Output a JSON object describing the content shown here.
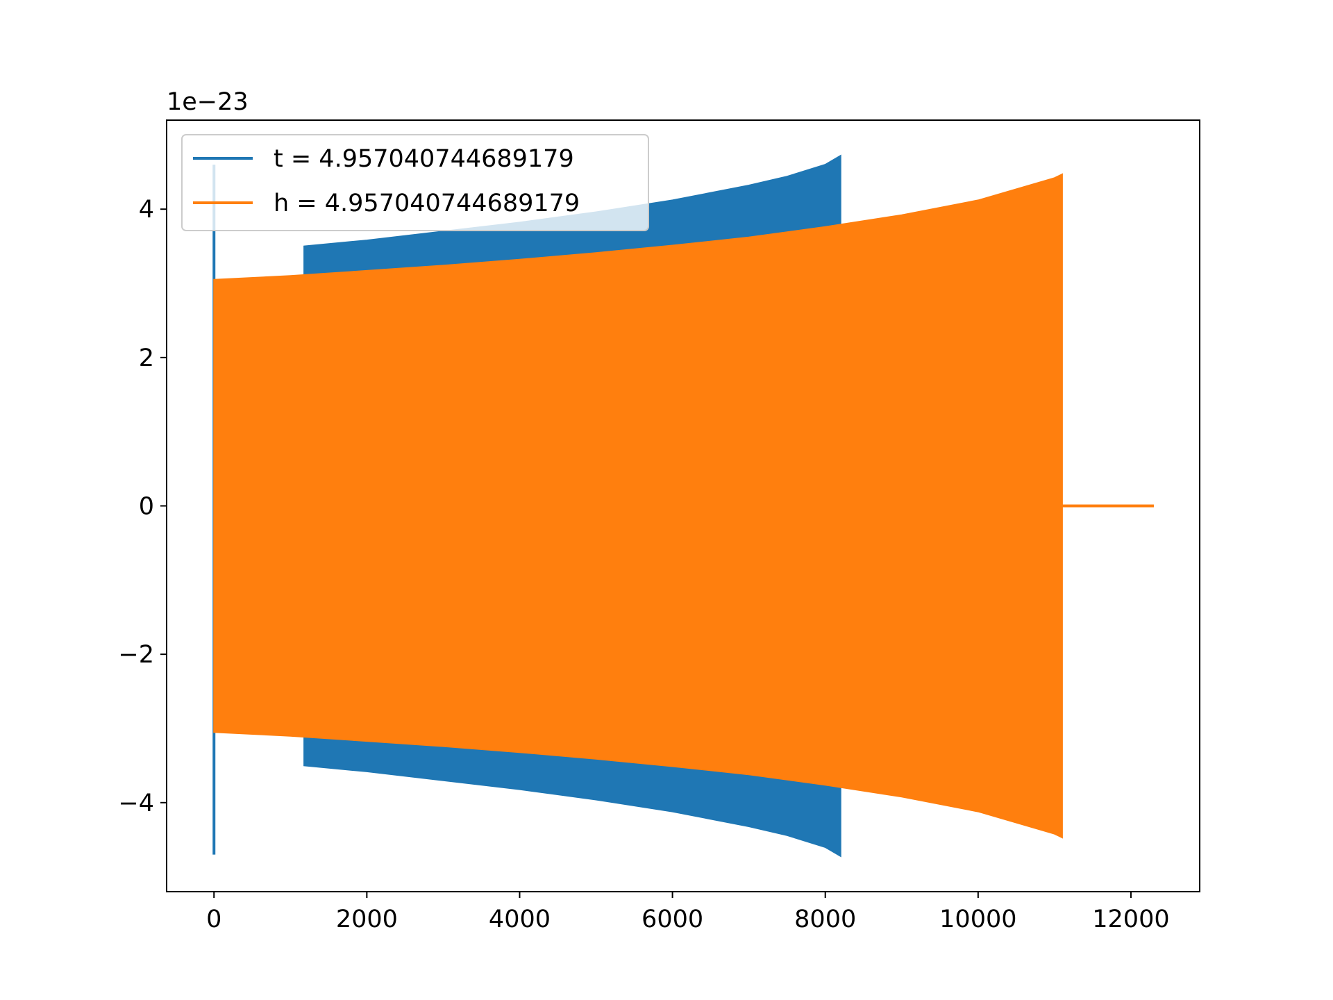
{
  "chart_data": {
    "type": "line",
    "title": "",
    "xlabel": "",
    "ylabel": "",
    "y_offset_text": "1e−23",
    "xlim": [
      -620,
      12900
    ],
    "ylim": [
      -5.2,
      5.2
    ],
    "x_ticks": [
      {
        "value": 0,
        "label": "0"
      },
      {
        "value": 2000,
        "label": "2000"
      },
      {
        "value": 4000,
        "label": "4000"
      },
      {
        "value": 6000,
        "label": "6000"
      },
      {
        "value": 8000,
        "label": "8000"
      },
      {
        "value": 10000,
        "label": "10000"
      },
      {
        "value": 12000,
        "label": "12000"
      }
    ],
    "y_ticks": [
      {
        "value": -4,
        "label": "−4"
      },
      {
        "value": -2,
        "label": "−2"
      },
      {
        "value": 0,
        "label": "0"
      },
      {
        "value": 2,
        "label": "2"
      },
      {
        "value": 4,
        "label": "4"
      }
    ],
    "grid": false,
    "legend_position": "top-left",
    "series": [
      {
        "name": "t = 4.957040744689179",
        "color": "#1f77b4",
        "spike": {
          "x": 0,
          "ymin": -4.7,
          "ymax": 4.6
        },
        "envelope": {
          "x": [
            1180,
            2000,
            3000,
            4000,
            5000,
            6000,
            7000,
            7500,
            8000,
            8200
          ],
          "upper": [
            3.5,
            3.58,
            3.7,
            3.82,
            3.96,
            4.12,
            4.32,
            4.44,
            4.6,
            4.72
          ],
          "lower": [
            -3.5,
            -3.58,
            -3.7,
            -3.82,
            -3.96,
            -4.12,
            -4.32,
            -4.44,
            -4.6,
            -4.72
          ]
        }
      },
      {
        "name": "h = 4.957040744689179",
        "color": "#ff7f0e",
        "envelope": {
          "x": [
            0,
            1000,
            2000,
            3000,
            4000,
            5000,
            6000,
            7000,
            8000,
            9000,
            10000,
            11000,
            11100
          ],
          "upper": [
            3.05,
            3.1,
            3.17,
            3.24,
            3.32,
            3.41,
            3.51,
            3.62,
            3.76,
            3.92,
            4.12,
            4.42,
            4.47
          ],
          "lower": [
            -3.05,
            -3.1,
            -3.17,
            -3.24,
            -3.32,
            -3.41,
            -3.51,
            -3.62,
            -3.76,
            -3.92,
            -4.12,
            -4.42,
            -4.47
          ]
        },
        "tail": {
          "x": [
            11100,
            12300
          ],
          "y": [
            0,
            0
          ]
        }
      }
    ]
  }
}
